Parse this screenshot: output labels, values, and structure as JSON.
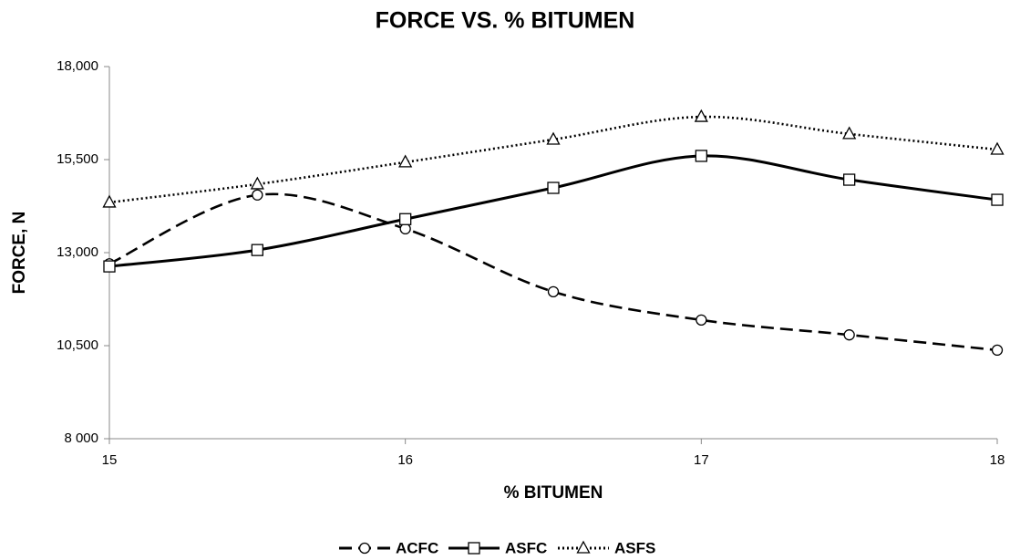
{
  "chart_data": {
    "type": "line",
    "title": "FORCE VS. % BITUMEN",
    "x_label": "% BITUMEN",
    "y_label": "FORCE, N",
    "x": [
      15,
      15.5,
      16,
      16.5,
      17,
      17.5,
      18
    ],
    "xlim": [
      15,
      18
    ],
    "xticks": [
      15,
      16,
      17,
      18
    ],
    "ylim": [
      8000,
      18000
    ],
    "yticks": [
      {
        "value": 8000,
        "label": "8 000"
      },
      {
        "value": 10500,
        "label": "10,500"
      },
      {
        "value": 13000,
        "label": "13,000"
      },
      {
        "value": 15500,
        "label": "15,500"
      },
      {
        "value": 18000,
        "label": "18,000"
      }
    ],
    "smooth": true,
    "legend": "bottom",
    "series": [
      {
        "name": "ACFC",
        "color": "#000000",
        "dash": "dashed",
        "marker": "circle",
        "values": [
          12700,
          14550,
          13640,
          11950,
          11190,
          10790,
          10380
        ]
      },
      {
        "name": "ASFC",
        "color": "#000000",
        "dash": "solid",
        "marker": "square",
        "values": [
          12630,
          13070,
          13900,
          14740,
          15600,
          14960,
          14420
        ]
      },
      {
        "name": "ASFS",
        "color": "#000000",
        "dash": "dotted",
        "marker": "triangle",
        "values": [
          14350,
          14840,
          15430,
          16040,
          16650,
          16190,
          15770
        ]
      }
    ]
  }
}
